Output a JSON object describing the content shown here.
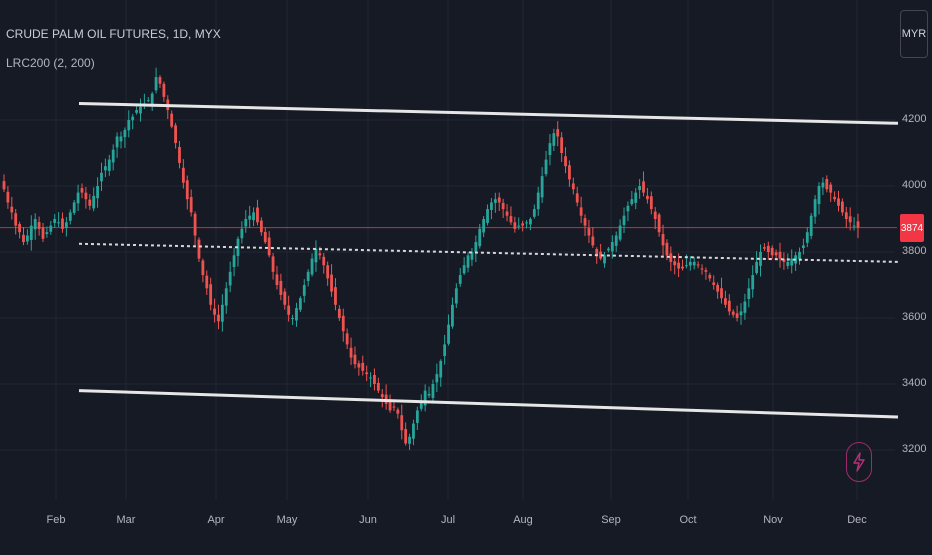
{
  "header": {
    "symbol_title": "CRUDE PALM OIL FUTURES, 1D, MYX",
    "indicator": "LRC200 (2, 200)",
    "currency": "MYR"
  },
  "last_price": {
    "label": "3874",
    "value": 3874,
    "color": "#f23645"
  },
  "icons": {
    "bolt": "lightning-bolt-icon"
  },
  "colors": {
    "up": "#26a69a",
    "down": "#ef5350",
    "channel": "#e6e6e6",
    "midline": "#d8d8d8",
    "grid": "#232632",
    "background": "#161a25"
  },
  "chart_data": {
    "type": "candlestick",
    "x_axis": {
      "ticks": [
        "Feb",
        "Mar",
        "Apr",
        "May",
        "Jun",
        "Jul",
        "Aug",
        "Sep",
        "Oct",
        "Nov",
        "Dec"
      ]
    },
    "y_axis": {
      "ticks": [
        3200,
        3400,
        3600,
        3800,
        4000,
        4200
      ],
      "range": [
        3090,
        4480
      ]
    },
    "grid": true,
    "indicator": {
      "name": "LRC200 (2, 200)",
      "upper": [
        4250,
        4190
      ],
      "middle": [
        3825,
        3770
      ],
      "lower": [
        3380,
        3300
      ]
    },
    "closes": [
      3990,
      3950,
      3920,
      3880,
      3860,
      3830,
      3850,
      3880,
      3900,
      3870,
      3840,
      3860,
      3880,
      3900,
      3890,
      3870,
      3890,
      3920,
      3950,
      3980,
      3980,
      3960,
      3940,
      3970,
      4000,
      4040,
      4060,
      4080,
      4110,
      4150,
      4150,
      4170,
      4200,
      4210,
      4230,
      4240,
      4250,
      4260,
      4280,
      4330,
      4310,
      4270,
      4230,
      4180,
      4130,
      4070,
      4010,
      3960,
      3920,
      3850,
      3780,
      3730,
      3690,
      3640,
      3610,
      3590,
      3640,
      3690,
      3740,
      3790,
      3840,
      3870,
      3900,
      3910,
      3920,
      3890,
      3860,
      3830,
      3790,
      3740,
      3700,
      3670,
      3640,
      3610,
      3600,
      3630,
      3660,
      3700,
      3740,
      3780,
      3810,
      3790,
      3760,
      3720,
      3680,
      3640,
      3600,
      3560,
      3520,
      3480,
      3460,
      3450,
      3440,
      3430,
      3420,
      3400,
      3380,
      3360,
      3340,
      3320,
      3330,
      3310,
      3260,
      3220,
      3240,
      3280,
      3320,
      3350,
      3380,
      3370,
      3400,
      3430,
      3470,
      3520,
      3580,
      3640,
      3690,
      3730,
      3760,
      3790,
      3800,
      3830,
      3870,
      3900,
      3930,
      3950,
      3960,
      3950,
      3930,
      3910,
      3890,
      3870,
      3880,
      3880,
      3890,
      3900,
      3930,
      3980,
      4030,
      4080,
      4130,
      4160,
      4150,
      4100,
      4060,
      4020,
      3990,
      3950,
      3910,
      3880,
      3850,
      3820,
      3790,
      3780,
      3790,
      3810,
      3830,
      3850,
      3880,
      3910,
      3940,
      3960,
      3980,
      4000,
      3980,
      3960,
      3930,
      3900,
      3860,
      3820,
      3790,
      3770,
      3760,
      3750,
      3750,
      3760,
      3770,
      3770,
      3760,
      3750,
      3740,
      3720,
      3700,
      3680,
      3660,
      3640,
      3620,
      3610,
      3600,
      3620,
      3650,
      3690,
      3730,
      3770,
      3800,
      3810,
      3800,
      3790,
      3790,
      3780,
      3770,
      3770,
      3780,
      3790,
      3800,
      3820,
      3860,
      3910,
      3960,
      4000,
      4010,
      3990,
      3980,
      3960,
      3940,
      3920,
      3900,
      3890,
      3880,
      3874
    ]
  }
}
